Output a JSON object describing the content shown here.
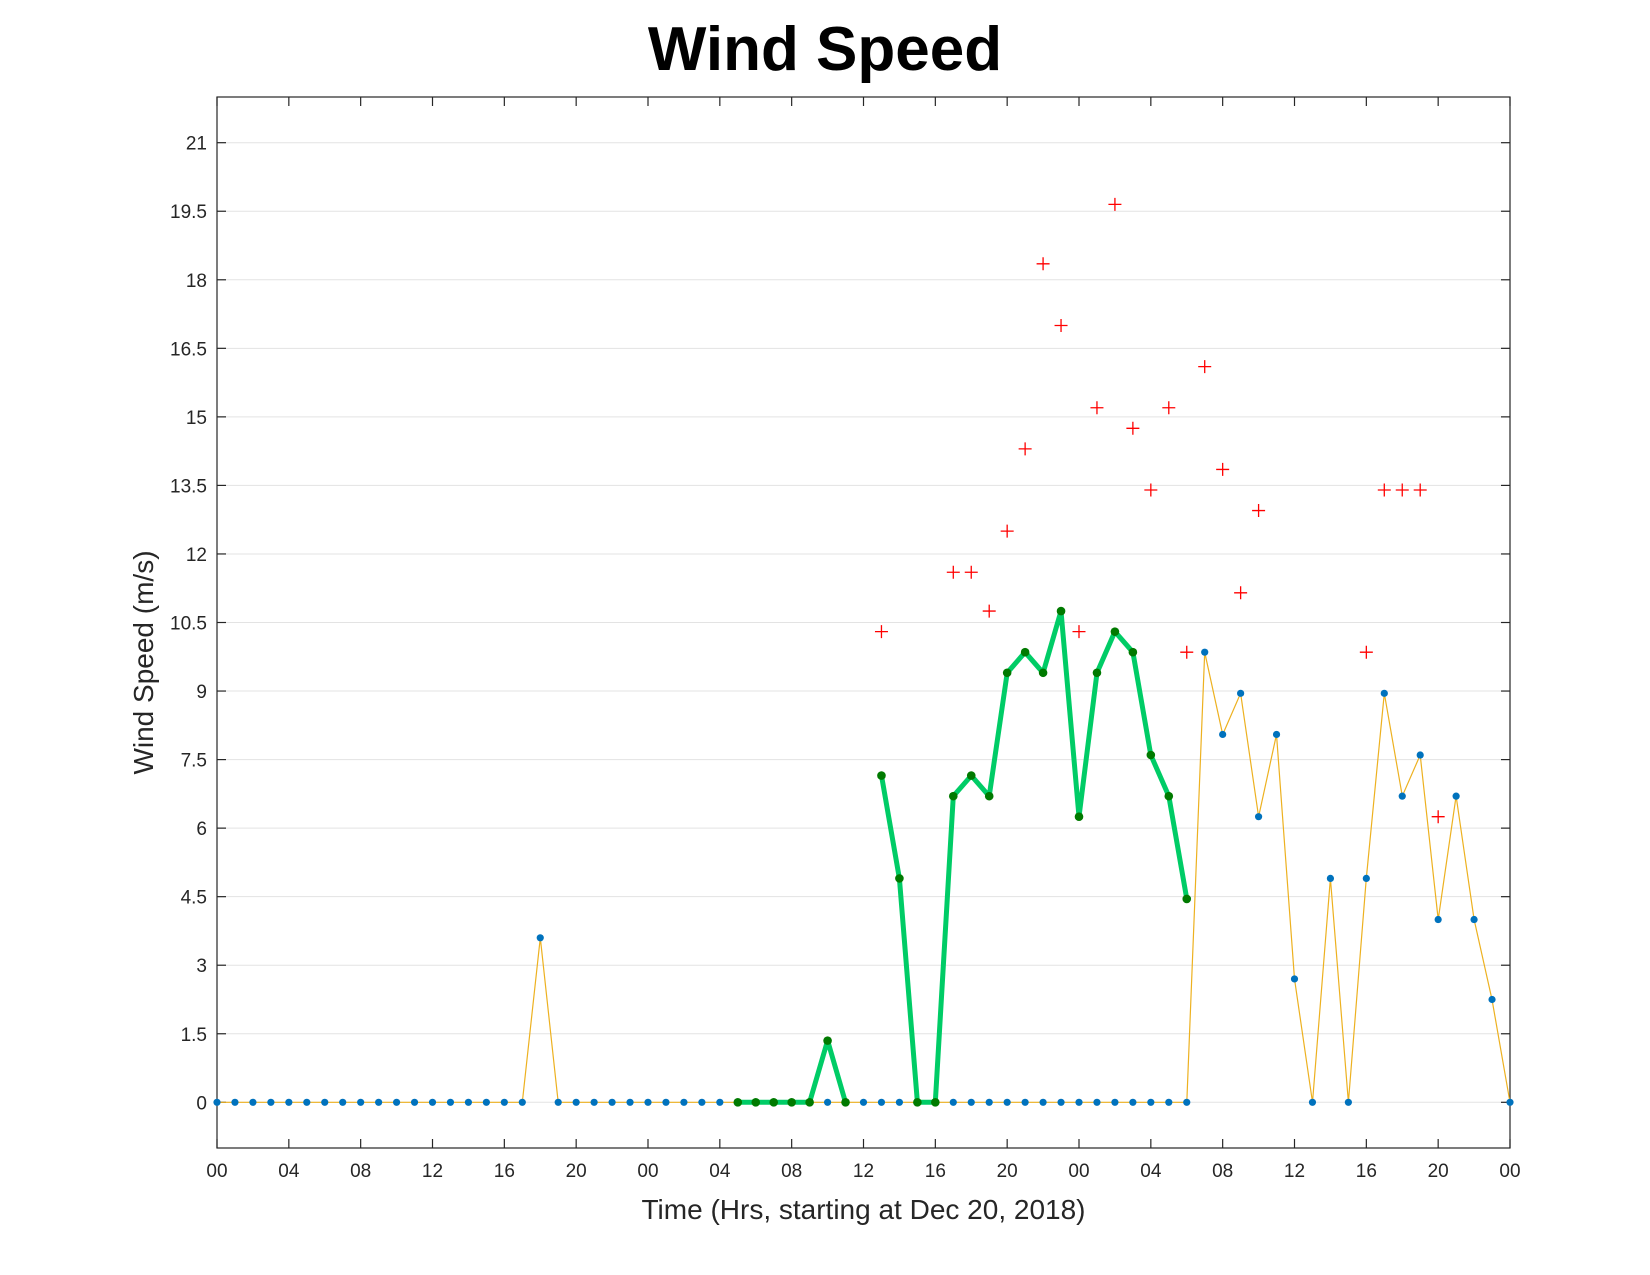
{
  "chart_data": {
    "type": "line",
    "title": "Wind Speed",
    "xlabel": "Time (Hrs, starting at Dec 20, 2018)",
    "ylabel": "Wind Speed (m/s)",
    "xlim": [
      0,
      72
    ],
    "ylim": [
      -1,
      22
    ],
    "grid": "horizontal",
    "x_tick_hours": [
      0,
      4,
      8,
      12,
      16,
      20,
      24,
      28,
      32,
      36,
      40,
      44,
      48,
      52,
      56,
      60,
      64,
      68,
      72
    ],
    "x_tick_labels": [
      "00",
      "04",
      "08",
      "12",
      "16",
      "20",
      "00",
      "04",
      "08",
      "12",
      "16",
      "20",
      "00",
      "04",
      "08",
      "12",
      "16",
      "20",
      "00"
    ],
    "y_ticks": [
      0,
      1.5,
      3,
      4.5,
      6,
      7.5,
      9,
      10.5,
      12,
      13.5,
      15,
      16.5,
      18,
      19.5,
      21
    ],
    "y_tick_labels": [
      "0",
      "1.5",
      "3",
      "4.5",
      "6",
      "7.5",
      "9",
      "10.5",
      "12",
      "13.5",
      "15",
      "16.5",
      "18",
      "19.5",
      "21"
    ],
    "series": [
      {
        "style": "thin-line-dots",
        "line_color": "#EDB120",
        "marker_color": "#0072BD",
        "x": [
          0,
          1,
          2,
          3,
          4,
          5,
          6,
          7,
          8,
          9,
          10,
          11,
          12,
          13,
          14,
          15,
          16,
          17,
          18,
          19,
          20,
          21,
          22,
          23,
          24,
          25,
          26,
          27,
          28,
          29,
          30,
          31,
          32,
          33,
          34,
          35,
          36,
          37,
          38,
          39,
          40,
          41,
          42,
          43,
          44,
          45,
          46,
          47,
          48,
          49,
          50,
          51,
          52,
          53,
          54,
          55,
          56,
          57,
          58,
          59,
          60,
          61,
          62,
          63,
          64,
          65,
          66,
          67,
          68,
          69,
          70,
          71,
          72
        ],
        "y": [
          0,
          0,
          0,
          0,
          0,
          0,
          0,
          0,
          0,
          0,
          0,
          0,
          0,
          0,
          0,
          0,
          0,
          0,
          3.6,
          0,
          0,
          0,
          0,
          0,
          0,
          0,
          0,
          0,
          0,
          0,
          0,
          0,
          0,
          0,
          0,
          0,
          0,
          0,
          0,
          0,
          0,
          0,
          0,
          0,
          0,
          0,
          0,
          0,
          0,
          0,
          0,
          0,
          0,
          0,
          0,
          9.85,
          8.05,
          8.95,
          6.25,
          8.05,
          2.7,
          0,
          4.9,
          0,
          4.9,
          8.95,
          6.7,
          7.6,
          4.0,
          6.7,
          4.0,
          2.25,
          0
        ]
      },
      {
        "style": "thick-line-dots",
        "line_color": "#00CC66",
        "marker_color": "#007A00",
        "segments": [
          {
            "x": [
              29,
              30,
              31,
              32,
              33,
              34,
              35
            ],
            "y": [
              0,
              0,
              0,
              0,
              0,
              1.35,
              0
            ]
          },
          {
            "x": [
              37,
              38,
              39,
              40,
              41,
              42,
              43,
              44,
              45,
              46,
              47,
              48,
              49,
              50,
              51,
              52,
              53,
              54
            ],
            "y": [
              7.15,
              4.9,
              0,
              0,
              6.7,
              7.15,
              6.7,
              9.4,
              9.85,
              9.4,
              10.75,
              6.25,
              9.4,
              10.3,
              9.85,
              7.6,
              6.7,
              4.45
            ]
          }
        ]
      },
      {
        "style": "plus-markers",
        "marker_color": "#FF0000",
        "x": [
          37,
          41,
          42,
          43,
          44,
          45,
          46,
          47,
          48,
          49,
          50,
          51,
          52,
          53,
          54,
          55,
          56,
          57,
          58,
          64,
          65,
          66,
          67,
          68
        ],
        "y": [
          10.3,
          11.6,
          11.6,
          10.75,
          12.5,
          14.3,
          18.35,
          17.0,
          10.3,
          15.2,
          19.65,
          14.75,
          13.4,
          15.2,
          9.85,
          16.1,
          13.85,
          11.15,
          12.95,
          9.85,
          13.4,
          13.4,
          13.4,
          6.25
        ]
      }
    ]
  }
}
